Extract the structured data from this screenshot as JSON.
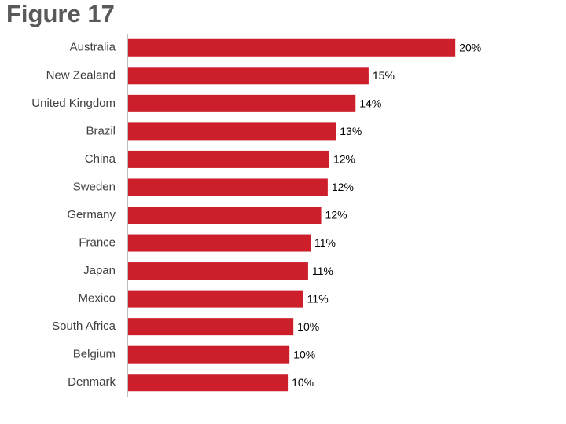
{
  "chart_data": {
    "type": "bar",
    "orientation": "horizontal",
    "title": "Figure 17",
    "categories": [
      "Australia",
      "New Zealand",
      "United Kingdom",
      "Brazil",
      "China",
      "Sweden",
      "Germany",
      "France",
      "Japan",
      "Mexico",
      "South Africa",
      "Belgium",
      "Denmark"
    ],
    "values": [
      20,
      14.7,
      13.9,
      12.7,
      12.3,
      12.2,
      11.8,
      11.15,
      11.0,
      10.7,
      10.1,
      9.86,
      9.76
    ],
    "value_labels": [
      "20%",
      "15%",
      "14%",
      "13%",
      "12%",
      "12%",
      "12%",
      "11%",
      "11%",
      "11%",
      "10%",
      "10%",
      "10%"
    ],
    "color": "#cc1f2b",
    "xlim": [
      0,
      21
    ]
  }
}
